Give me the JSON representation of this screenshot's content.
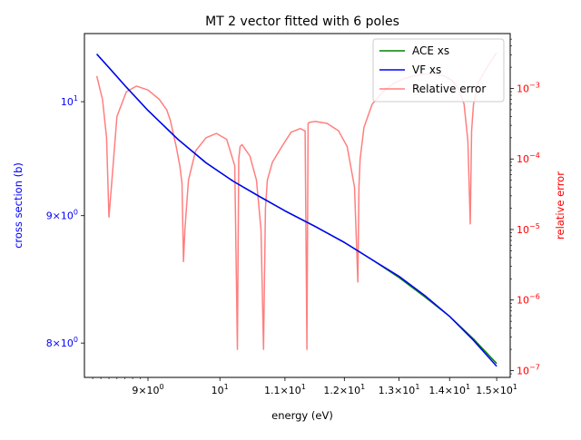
{
  "chart_data": {
    "type": "line",
    "title": "MT 2 vector fitted with 6 poles",
    "xlabel": "energy (eV)",
    "ylabel_left": "cross section (b)",
    "ylabel_right": "relative error",
    "x_scale": "log",
    "y_left_scale": "log",
    "y_right_scale": "log",
    "xlim": [
      8.2,
      15.3
    ],
    "ylim_left": [
      7.75,
      10.65
    ],
    "ylim_right": [
      8e-08,
      0.006
    ],
    "x_ticks": [
      {
        "value": 9,
        "base": "9×10",
        "exp": "0"
      },
      {
        "value": 10,
        "base": "10",
        "exp": "1"
      },
      {
        "value": 11,
        "base": "1.1×10",
        "exp": "1"
      },
      {
        "value": 12,
        "base": "1.2×10",
        "exp": "1"
      },
      {
        "value": 13,
        "base": "1.3×10",
        "exp": "1"
      },
      {
        "value": 14,
        "base": "1.4×10",
        "exp": "1"
      },
      {
        "value": 15,
        "base": "1.5×10",
        "exp": "1"
      }
    ],
    "y_left_ticks": [
      {
        "value": 10,
        "base": "10",
        "exp": "1"
      },
      {
        "value": 9,
        "base": "9×10",
        "exp": "0"
      },
      {
        "value": 8,
        "base": "8×10",
        "exp": "0"
      }
    ],
    "y_right_ticks": [
      {
        "value": 0.001,
        "base": "10",
        "exp": "−3"
      },
      {
        "value": 0.0001,
        "base": "10",
        "exp": "−4"
      },
      {
        "value": 1e-05,
        "base": "10",
        "exp": "−5"
      },
      {
        "value": 1e-06,
        "base": "10",
        "exp": "−6"
      },
      {
        "value": 1e-07,
        "base": "10",
        "exp": "−7"
      }
    ],
    "colors": {
      "ace": "#008000",
      "vf": "#0000ff",
      "error": "#ff0000",
      "left_axis_text": "#0000ff",
      "right_axis_text": "#ff0000"
    },
    "legend_position": "top-right",
    "series": [
      {
        "name": "ACE xs",
        "axis": "left",
        "color": "#008000",
        "x": [
          8.35,
          8.5,
          8.7,
          9.0,
          9.4,
          9.8,
          10.2,
          10.6,
          11.0,
          11.5,
          12.0,
          12.5,
          13.0,
          13.5,
          14.0,
          14.5,
          15.0
        ],
        "y": [
          10.45,
          10.32,
          10.15,
          9.92,
          9.66,
          9.45,
          9.29,
          9.16,
          9.04,
          8.91,
          8.78,
          8.64,
          8.5,
          8.35,
          8.2,
          8.03,
          7.85
        ]
      },
      {
        "name": "VF xs",
        "axis": "left",
        "color": "#0000ff",
        "x": [
          8.35,
          8.5,
          8.7,
          9.0,
          9.4,
          9.8,
          10.2,
          10.6,
          11.0,
          11.5,
          12.0,
          12.5,
          13.0,
          13.5,
          14.0,
          14.5,
          15.0
        ],
        "y": [
          10.45,
          10.32,
          10.15,
          9.92,
          9.66,
          9.45,
          9.29,
          9.16,
          9.04,
          8.91,
          8.78,
          8.64,
          8.51,
          8.36,
          8.2,
          8.02,
          7.83
        ]
      },
      {
        "name": "Relative error",
        "axis": "right",
        "color": "#ff0000",
        "alpha": 0.5,
        "x": [
          8.35,
          8.42,
          8.47,
          8.5,
          8.53,
          8.6,
          8.72,
          8.85,
          9.0,
          9.15,
          9.25,
          9.3,
          9.38,
          9.43,
          9.46,
          9.48,
          9.5,
          9.55,
          9.65,
          9.8,
          9.95,
          10.1,
          10.22,
          10.26,
          10.28,
          10.3,
          10.33,
          10.45,
          10.55,
          10.62,
          10.66,
          10.69,
          10.72,
          10.8,
          10.95,
          11.1,
          11.25,
          11.33,
          11.36,
          11.38,
          11.4,
          11.5,
          11.7,
          11.9,
          12.05,
          12.18,
          12.24,
          12.26,
          12.28,
          12.35,
          12.5,
          12.7,
          12.9,
          13.1,
          13.3,
          13.5,
          13.7,
          13.9,
          14.05,
          14.2,
          14.3,
          14.38,
          14.43,
          14.46,
          14.5,
          14.6,
          14.75,
          14.9,
          15.0
        ],
        "y": [
          0.0015,
          0.0007,
          0.0002,
          1.5e-05,
          4e-05,
          0.0004,
          0.0009,
          0.00108,
          0.00095,
          0.0007,
          0.0005,
          0.00035,
          0.00015,
          8e-05,
          4.5e-05,
          3.5e-06,
          1e-05,
          5e-05,
          0.00013,
          0.0002,
          0.00023,
          0.00019,
          8e-05,
          2e-07,
          0.0001,
          0.00015,
          0.00016,
          0.00011,
          5e-05,
          1e-05,
          2e-07,
          2e-05,
          5e-05,
          9e-05,
          0.00015,
          0.00024,
          0.00027,
          0.00025,
          2e-07,
          0.00032,
          0.00033,
          0.00034,
          0.00032,
          0.00025,
          0.00015,
          4e-05,
          1.8e-06,
          4e-05,
          0.0001,
          0.00028,
          0.0006,
          0.0009,
          0.00118,
          0.00138,
          0.00152,
          0.0016,
          0.0016,
          0.0015,
          0.0013,
          0.00095,
          0.0006,
          0.00018,
          1.2e-05,
          0.00025,
          0.0006,
          0.0012,
          0.0018,
          0.0026,
          0.0032
        ]
      }
    ]
  }
}
